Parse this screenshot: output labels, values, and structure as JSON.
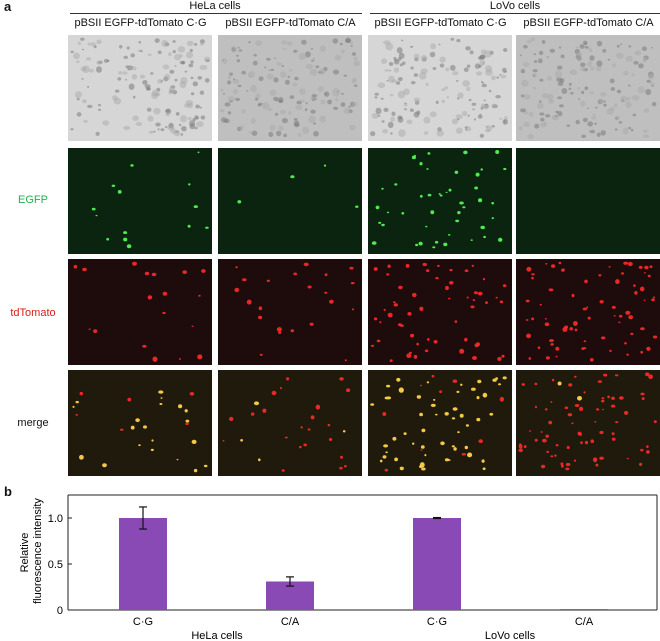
{
  "panel_a_label": "a",
  "panel_b_label": "b",
  "groups": [
    {
      "label": "HeLa cells"
    },
    {
      "label": "LoVo cells"
    }
  ],
  "columns": [
    {
      "label": "pBSII EGFP-tdTomato C·G"
    },
    {
      "label": "pBSII EGFP-tdTomato C/A"
    },
    {
      "label": "pBSII EGFP-tdTomato C·G"
    },
    {
      "label": "pBSII EGFP-tdTomato C/A"
    }
  ],
  "rows": [
    {
      "label": "",
      "kind": "brightfield",
      "bg": "#d3d3d3",
      "dot": "#8a8a8a"
    },
    {
      "label": "EGFP",
      "kind": "egfp",
      "bg": "#0a2410",
      "dot": "#58ff58",
      "label_color": "#22b14c"
    },
    {
      "label": "tdTomato",
      "kind": "tdtomato",
      "bg": "#1e0b0b",
      "dot": "#ff2a2a",
      "label_color": "#d91c1c"
    },
    {
      "label": "merge",
      "kind": "merge",
      "bg": "#1f1a0c",
      "dot": "#ffd24a",
      "label_color": "#111111"
    }
  ],
  "cell_density": [
    {
      "egfp": 14,
      "tdtomato": 18,
      "merge": 20,
      "merge_red": 6
    },
    {
      "egfp": 4,
      "tdtomato": 22,
      "merge": 4,
      "merge_red": 22
    },
    {
      "egfp": 45,
      "tdtomato": 55,
      "merge": 55,
      "merge_red": 10
    },
    {
      "egfp": 0,
      "tdtomato": 70,
      "merge": 2,
      "merge_red": 70
    }
  ],
  "chart_data": {
    "type": "bar",
    "categories": [
      "C·G",
      "C/A",
      "C·G",
      "C/A"
    ],
    "group_labels": [
      "HeLa cells",
      "LoVo cells"
    ],
    "values": [
      1.0,
      0.31,
      1.0,
      0.01
    ],
    "errors": [
      0.12,
      0.05,
      0.005,
      0.0
    ],
    "bar_color": "#8a4ab5",
    "ylabel": "Relative fluorescence intensity",
    "yticks": [
      0,
      0.5,
      1.0
    ],
    "ytick_labels": [
      "0",
      "0.5",
      "1.0"
    ],
    "ylim": [
      0,
      1.25
    ],
    "grid": false
  }
}
